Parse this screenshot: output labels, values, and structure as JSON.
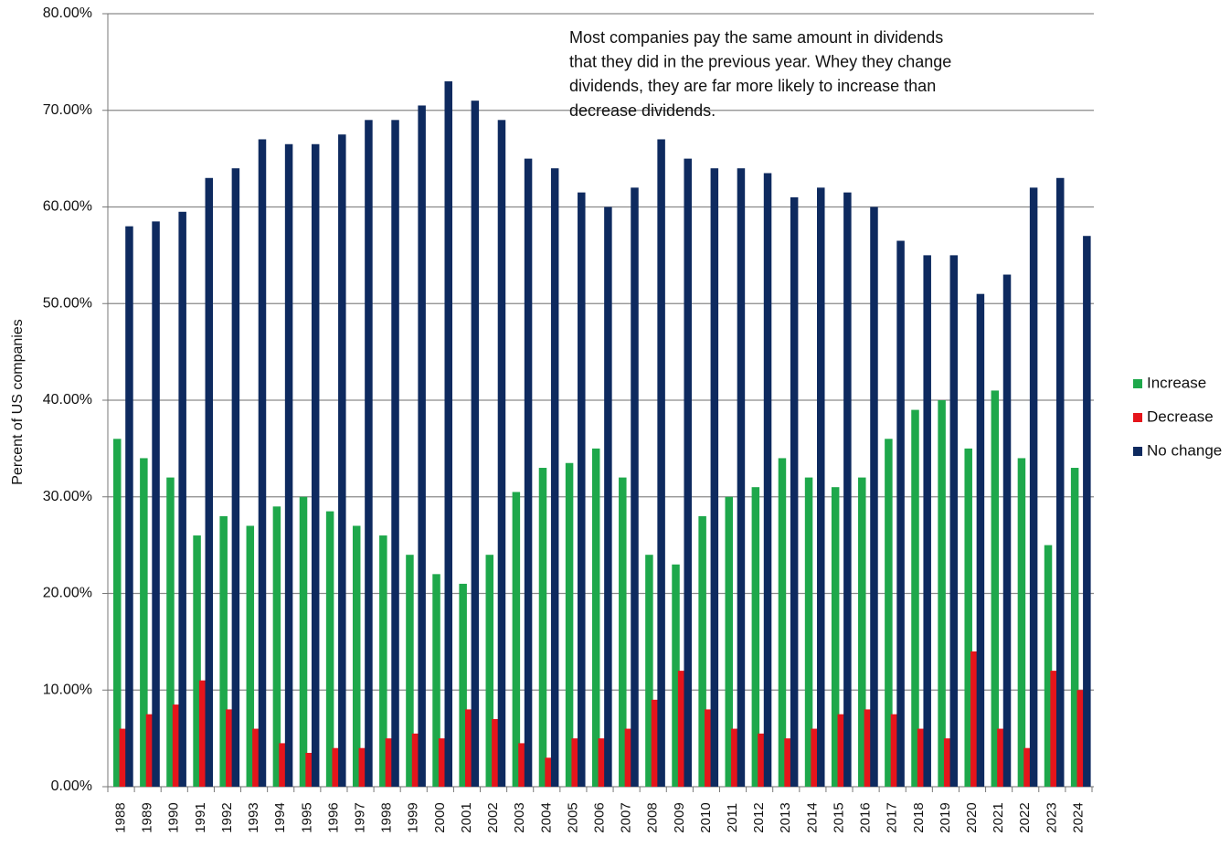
{
  "chart_data": {
    "type": "bar",
    "y_label": "Percent of US companies",
    "annotation": [
      "Most companies pay the same amount in dividends",
      "that they did in the previous year. Whey they change",
      "dividends, they are far more likely to increase than",
      "decrease dividends."
    ],
    "categories": [
      "1988",
      "1989",
      "1990",
      "1991",
      "1992",
      "1993",
      "1994",
      "1995",
      "1996",
      "1997",
      "1998",
      "1999",
      "2000",
      "2001",
      "2002",
      "2003",
      "2004",
      "2005",
      "2006",
      "2007",
      "2008",
      "2009",
      "2010",
      "2011",
      "2012",
      "2013",
      "2014",
      "2015",
      "2016",
      "2017",
      "2018",
      "2019",
      "2020",
      "2021",
      "2022",
      "2023",
      "2024"
    ],
    "series": [
      {
        "name": "Increase",
        "color": "#1ea84b",
        "values": [
          36,
          34,
          32,
          26,
          28,
          27,
          29,
          30,
          28.5,
          27,
          26,
          24,
          22,
          21,
          24,
          30.5,
          33,
          33.5,
          35,
          32,
          24,
          23,
          28,
          30,
          31,
          34,
          32,
          31,
          32,
          36,
          39,
          40,
          35,
          41,
          34,
          25,
          33
        ]
      },
      {
        "name": "Decrease",
        "color": "#e5151b",
        "values": [
          6,
          7.5,
          8.5,
          11,
          8,
          6,
          4.5,
          3.5,
          4,
          4,
          5,
          5.5,
          5,
          8,
          7,
          4.5,
          3,
          5,
          5,
          6,
          9,
          12,
          8,
          6,
          5.5,
          5,
          6,
          7.5,
          8,
          7.5,
          6,
          5,
          14,
          6,
          4,
          12,
          10
        ]
      },
      {
        "name": "No change",
        "color": "#0e2a5f",
        "values": [
          58,
          58.5,
          59.5,
          63,
          64,
          67,
          66.5,
          66.5,
          67.5,
          69,
          69,
          70.5,
          73,
          71,
          69,
          65,
          64,
          61.5,
          60,
          62,
          67,
          65,
          64,
          64,
          63.5,
          61,
          62,
          61.5,
          60,
          56.5,
          55,
          55,
          51,
          53,
          62,
          63,
          57
        ]
      }
    ],
    "ylim": [
      0,
      80
    ],
    "yticks": [
      {
        "value": 0,
        "label": "0.00%"
      },
      {
        "value": 10,
        "label": "10.00%"
      },
      {
        "value": 20,
        "label": "20.00%"
      },
      {
        "value": 30,
        "label": "30.00%"
      },
      {
        "value": 40,
        "label": "40.00%"
      },
      {
        "value": 50,
        "label": "50.00%"
      },
      {
        "value": 60,
        "label": "60.00%"
      },
      {
        "value": 70,
        "label": "70.00%"
      },
      {
        "value": 80,
        "label": "80.00%"
      }
    ],
    "grid": true,
    "legend": "right"
  }
}
